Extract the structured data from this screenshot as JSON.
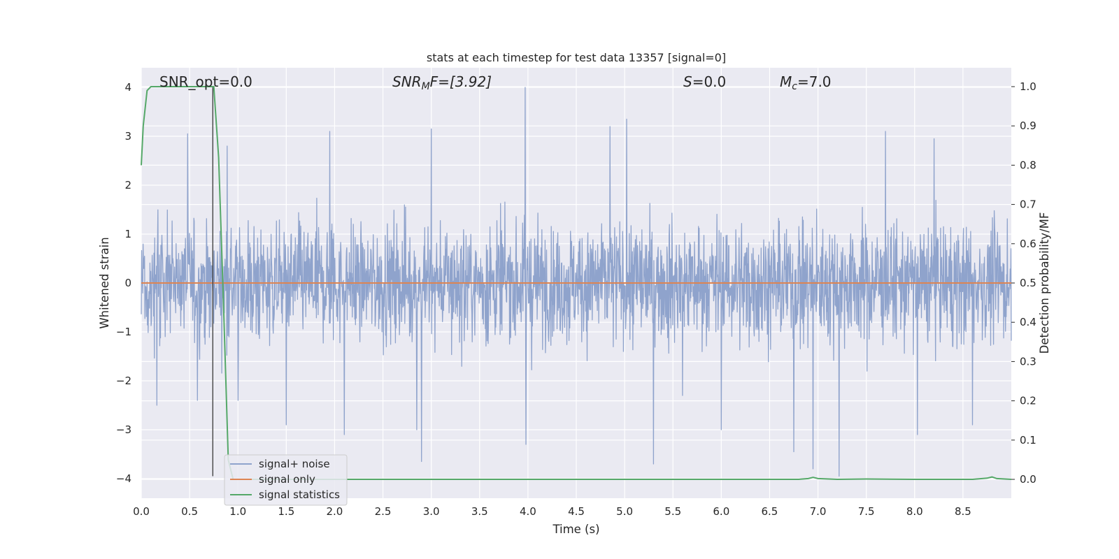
{
  "chart_data": {
    "type": "line",
    "title": "stats at each timestep for test data 13357 [signal=0]",
    "xlabel": "Time (s)",
    "ylabel": "Whitened strain",
    "ylabel_right": "Detection probability/MF",
    "xlim": [
      0.0,
      9.0
    ],
    "ylim": [
      -4.4,
      4.4
    ],
    "ylim_right": [
      -0.048,
      1.048
    ],
    "xticks": [
      "0.0",
      "0.5",
      "1.0",
      "1.5",
      "2.0",
      "2.5",
      "3.0",
      "3.5",
      "4.0",
      "4.5",
      "5.0",
      "5.5",
      "6.0",
      "6.5",
      "7.0",
      "7.5",
      "8.0",
      "8.5"
    ],
    "yticks_left": [
      "−4",
      "−3",
      "−2",
      "−1",
      "0",
      "1",
      "2",
      "3",
      "4"
    ],
    "yticks_right": [
      "0.0",
      "0.1",
      "0.2",
      "0.3",
      "0.4",
      "0.5",
      "0.6",
      "0.7",
      "0.8",
      "0.9",
      "1.0"
    ],
    "grid": true,
    "legend_position": "lower-left",
    "annotations": {
      "snr_opt": "SNR_opt=0.0",
      "snr_mf_base": "SNR",
      "snr_mf_sub": "M",
      "snr_mf_rest": "F=[3.92]",
      "s_label": "S",
      "s_value": "=0.0",
      "mc_base": "M",
      "mc_sub": "c",
      "mc_value": "=7.0"
    },
    "marker_line_x": 0.74,
    "series": [
      {
        "name": "signal+ noise",
        "axis": "left",
        "color": "#8fa3cc",
        "description_values": "dense whitened noise, bulk within ±1.6, excursions to about ±4.0",
        "peak_events": [
          [
            0.16,
            -2.5
          ],
          [
            0.48,
            3.05
          ],
          [
            0.58,
            -2.4
          ],
          [
            0.89,
            2.8
          ],
          [
            1.0,
            -2.4
          ],
          [
            1.5,
            -2.9
          ],
          [
            1.95,
            3.1
          ],
          [
            2.1,
            -3.1
          ],
          [
            2.85,
            -3.0
          ],
          [
            2.9,
            -3.65
          ],
          [
            3.0,
            3.15
          ],
          [
            3.97,
            4.0
          ],
          [
            3.98,
            -3.3
          ],
          [
            4.85,
            3.2
          ],
          [
            5.02,
            3.35
          ],
          [
            5.3,
            -3.7
          ],
          [
            5.6,
            -2.3
          ],
          [
            6.0,
            -3.0
          ],
          [
            6.75,
            -3.45
          ],
          [
            6.95,
            -3.8
          ],
          [
            7.22,
            -3.95
          ],
          [
            7.7,
            3.1
          ],
          [
            8.03,
            -3.1
          ],
          [
            8.2,
            2.95
          ],
          [
            8.6,
            -2.9
          ]
        ]
      },
      {
        "name": "signal only",
        "axis": "left",
        "color": "#dd8452",
        "values_note": "zero signal",
        "x": [
          0.0,
          9.0
        ],
        "y": [
          0.0,
          0.0
        ]
      },
      {
        "name": "signal statistics",
        "axis": "right",
        "color": "#55a868",
        "x": [
          0.0,
          0.02,
          0.06,
          0.1,
          0.2,
          0.4,
          0.6,
          0.72,
          0.75,
          0.8,
          0.85,
          0.9,
          0.95,
          1.5,
          3.0,
          5.0,
          6.8,
          6.9,
          6.95,
          7.0,
          7.2,
          7.5,
          8.0,
          8.6,
          8.75,
          8.8,
          8.85,
          9.0
        ],
        "y": [
          0.8,
          0.9,
          0.99,
          1.0,
          1.0,
          1.0,
          1.0,
          1.0,
          1.0,
          0.82,
          0.45,
          0.05,
          0.0,
          0.0,
          0.0,
          0.0,
          0.0,
          0.002,
          0.005,
          0.002,
          0.0,
          0.001,
          0.0,
          0.0,
          0.003,
          0.006,
          0.002,
          0.0
        ]
      }
    ]
  }
}
